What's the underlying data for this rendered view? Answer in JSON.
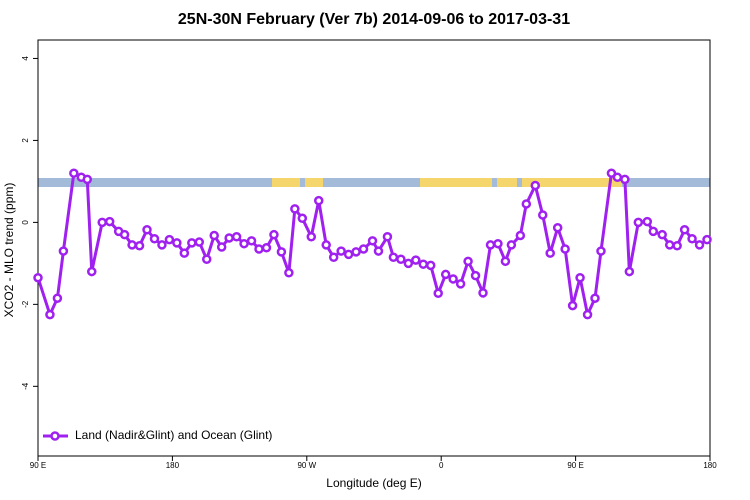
{
  "chart_data": {
    "type": "line",
    "title": "25N-30N February (Ver 7b)   2014-09-06 to 2017-03-31",
    "x_label": "Longitude (deg E)",
    "y_label": "XCO2 - MLO trend (ppm)",
    "xlim": [
      90,
      540
    ],
    "xticks": [
      {
        "value": 90,
        "label": "90 E"
      },
      180,
      {
        "value": 270,
        "label": "90 W"
      },
      {
        "value": 360,
        "label": "0"
      },
      {
        "value": 450,
        "label": "90 E"
      },
      {
        "value": 540,
        "label": "180"
      }
    ],
    "ylim": [
      -5.7,
      4.45
    ],
    "yticks": [
      -4,
      -2,
      0,
      2,
      4
    ],
    "legend": "bottom-left",
    "series": [
      {
        "name": "Land (Nadir&Glint) and Ocean (Glint)",
        "color": "#a020f0",
        "x": [
          90,
          98,
          103,
          107,
          114,
          119,
          123,
          126,
          133,
          138,
          144,
          148,
          153,
          158,
          163,
          168,
          173,
          178,
          183,
          188,
          193,
          198,
          203,
          208,
          213,
          218,
          223,
          228,
          233,
          238,
          243,
          248,
          253,
          258,
          262,
          267,
          273,
          278,
          283,
          288,
          293,
          298,
          303,
          308,
          314,
          318,
          324,
          328,
          333,
          338,
          343,
          348,
          353,
          358,
          363,
          368,
          373,
          378,
          383,
          388,
          393,
          398,
          403,
          407,
          413,
          417,
          423,
          428,
          433,
          438,
          443,
          448,
          453,
          458,
          463,
          467,
          474,
          478,
          483,
          486,
          492,
          498,
          502,
          508,
          513,
          518,
          523,
          528,
          533,
          538
        ],
        "values": [
          -1.35,
          -2.25,
          -1.85,
          -0.7,
          1.2,
          1.1,
          1.05,
          -1.2,
          0,
          0.02,
          -0.22,
          -0.3,
          -0.55,
          -0.57,
          -0.18,
          -0.4,
          -0.55,
          -0.42,
          -0.5,
          -0.75,
          -0.5,
          -0.48,
          -0.9,
          -0.32,
          -0.6,
          -0.38,
          -0.35,
          -0.52,
          -0.45,
          -0.65,
          -0.62,
          -0.3,
          -0.72,
          -1.23,
          0.33,
          0.1,
          -0.35,
          0.53,
          -0.55,
          -0.85,
          -0.7,
          -0.78,
          -0.72,
          -0.65,
          -0.45,
          -0.7,
          -0.35,
          -0.85,
          -0.9,
          -1.0,
          -0.92,
          -1.02,
          -1.05,
          -1.73,
          -1.27,
          -1.38,
          -1.5,
          -0.95,
          -1.3,
          -1.72,
          -0.55,
          -0.52,
          -0.95,
          -0.55,
          -0.32,
          0.45,
          0.9,
          0.18,
          -0.75,
          -0.13,
          -0.65,
          -2.03,
          -1.35,
          -2.25,
          -1.85,
          -0.7,
          1.2,
          1.1,
          1.05,
          -1.2,
          0,
          0.02,
          -0.22,
          -0.3,
          -0.55,
          -0.57,
          -0.18,
          -0.4,
          -0.55,
          -0.42
        ]
      }
    ]
  }
}
